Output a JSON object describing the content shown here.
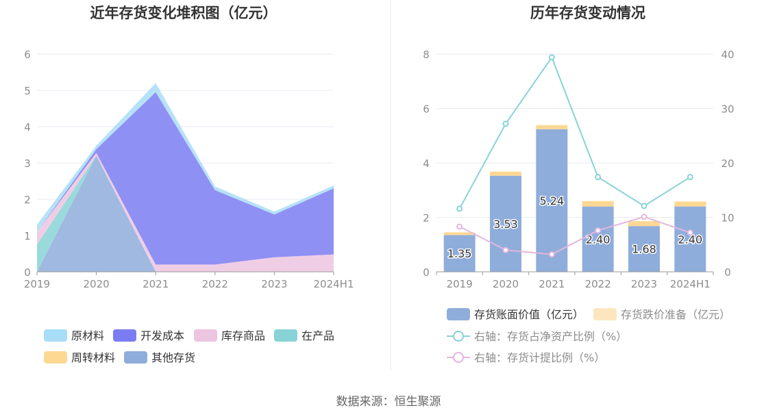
{
  "colors": {
    "raw_material": "#a8ddf8",
    "dev_cost": "#7b7cf2",
    "inventory_goods": "#ecc5e1",
    "wip": "#88d3d6",
    "turnover": "#fdd893",
    "other": "#8fadda",
    "book_value": "#8fadda",
    "provision": "#fde6bd",
    "ratio_line": "#88d3d6",
    "provision_line": "#e3b6de",
    "grid": "#e6e9f2",
    "divider": "#e8e8e8"
  },
  "footer": {
    "source": "数据来源：恒生聚源"
  },
  "chart_data": [
    {
      "type": "area",
      "title": "近年存货变化堆积图（亿元）",
      "categories": [
        "2019",
        "2020",
        "2021",
        "2022",
        "2023",
        "2024H1"
      ],
      "ylim": [
        0,
        6
      ],
      "yticks": [
        "0",
        "1",
        "2",
        "3",
        "4",
        "5",
        "6"
      ],
      "stacked": true,
      "series": [
        {
          "name": "其他存货",
          "values": [
            0.0,
            3.2,
            0.0,
            0.0,
            0.0,
            0.0
          ],
          "color": "#8fadda"
        },
        {
          "name": "在产品",
          "values": [
            0.75,
            0.0,
            0.0,
            0.0,
            0.0,
            0.0
          ],
          "color": "#88d3d6"
        },
        {
          "name": "周转材料",
          "values": [
            0.0,
            0.0,
            0.0,
            0.0,
            0.0,
            0.0
          ],
          "color": "#fdd893"
        },
        {
          "name": "库存商品",
          "values": [
            0.35,
            0.08,
            0.2,
            0.2,
            0.4,
            0.48
          ],
          "color": "#ecc5e1"
        },
        {
          "name": "开发成本",
          "values": [
            0.0,
            0.1,
            4.75,
            2.05,
            1.18,
            1.82
          ],
          "color": "#7b7cf2"
        },
        {
          "name": "原材料",
          "values": [
            0.2,
            0.1,
            0.25,
            0.1,
            0.08,
            0.08
          ],
          "color": "#a8ddf8"
        }
      ],
      "legend_order": [
        "原材料",
        "开发成本",
        "库存商品",
        "在产品",
        "周转材料",
        "其他存货"
      ],
      "legend_position": "bottom",
      "grid": true
    },
    {
      "type": "bar",
      "title": "历年存货变动情况",
      "categories": [
        "2019",
        "2020",
        "2021",
        "2022",
        "2023",
        "2024H1"
      ],
      "ylim": [
        0,
        8
      ],
      "yticks": [
        "0",
        "2",
        "4",
        "6",
        "8"
      ],
      "y2lim": [
        0,
        40
      ],
      "y2ticks": [
        "0",
        "10",
        "20",
        "30",
        "40"
      ],
      "stacked": true,
      "series": [
        {
          "name": "存货账面价值（亿元）",
          "kind": "bar",
          "axis": "left",
          "values": [
            1.35,
            3.53,
            5.24,
            2.4,
            1.68,
            2.4
          ],
          "labels": [
            "1.35",
            "3.53",
            "5.24",
            "2.40",
            "1.68",
            "2.40"
          ]
        },
        {
          "name": "存货跌价准备（亿元）",
          "kind": "bar",
          "axis": "left",
          "values": [
            0.1,
            0.15,
            0.15,
            0.2,
            0.18,
            0.18
          ]
        },
        {
          "name": "右轴：存货占净资产比例（%）",
          "kind": "line",
          "axis": "right",
          "values": [
            11.6,
            27.2,
            39.4,
            17.4,
            12.1,
            17.4
          ]
        },
        {
          "name": "右轴：存货计提比例（%）",
          "kind": "line",
          "axis": "right",
          "values": [
            8.3,
            4.0,
            3.2,
            7.6,
            10.1,
            7.2
          ]
        }
      ],
      "legend_position": "bottom",
      "grid": true
    }
  ]
}
